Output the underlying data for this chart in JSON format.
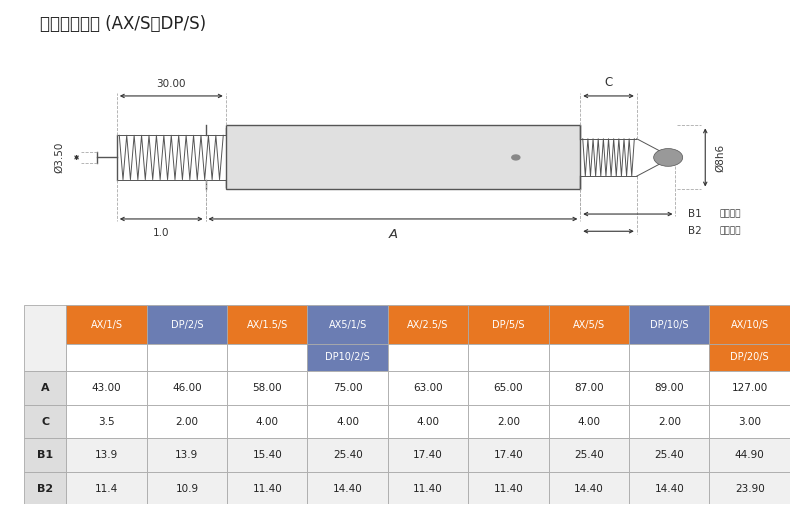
{
  "title": "标准弹簧推动 (AX/S和DP/S)",
  "title_fontsize": 12,
  "background_color": "#ffffff",
  "table": {
    "col_headers_line1": [
      "AX/1/S",
      "DP/2/S",
      "AX/1.5/S",
      "AX5/1/S",
      "AX/2.5/S",
      "DP/5/S",
      "AX/5/S",
      "DP/10/S",
      "AX/10/S"
    ],
    "col_headers_line2": [
      "",
      "",
      "",
      "DP10/2/S",
      "",
      "",
      "",
      "",
      "DP/20/S"
    ],
    "row_headers": [
      "A",
      "C",
      "B1",
      "B2"
    ],
    "data_str": [
      [
        "43.00",
        "46.00",
        "58.00",
        "75.00",
        "63.00",
        "65.00",
        "87.00",
        "89.00",
        "127.00"
      ],
      [
        "3.5",
        "2.00",
        "4.00",
        "4.00",
        "4.00",
        "2.00",
        "4.00",
        "2.00",
        "3.00"
      ],
      [
        "13.9",
        "13.9",
        "15.40",
        "25.40",
        "17.40",
        "17.40",
        "25.40",
        "25.40",
        "44.90"
      ],
      [
        "11.4",
        "10.9",
        "11.40",
        "14.40",
        "11.40",
        "11.40",
        "14.40",
        "14.40",
        "23.90"
      ]
    ],
    "header_colors": [
      "#E87722",
      "#6B7DB3",
      "#E87722",
      "#6B7DB3",
      "#E87722",
      "#E87722",
      "#E87722",
      "#6B7DB3",
      "#E87722"
    ],
    "border_color": "#aaaaaa"
  },
  "diagram": {
    "dim_30": "30.00",
    "dim_1": "1.0",
    "dim_C": "C",
    "dim_A": "A",
    "dim_B1": "B1",
    "dim_B2": "B2",
    "dim_d35": "Ø3.50",
    "dim_d8h6": "Ø8h6",
    "label_extended": "完全伸展",
    "label_retracted": "完全收回"
  }
}
